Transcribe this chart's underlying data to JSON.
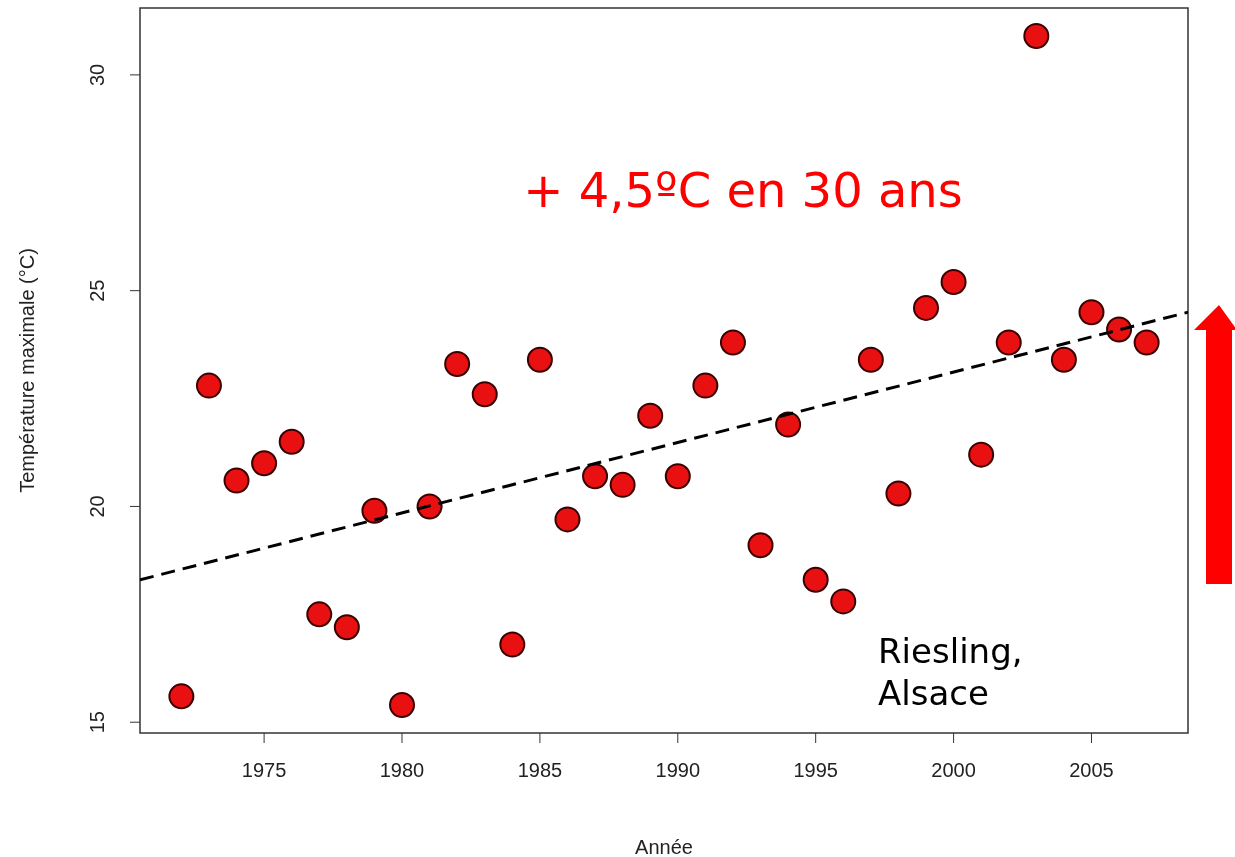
{
  "chart_data": {
    "type": "scatter",
    "xlabel": "Année",
    "ylabel": "Température maximale (°C)",
    "xlim": [
      1970.5,
      2008.5
    ],
    "ylim": [
      14.75,
      31.55
    ],
    "xticks": [
      1975,
      1980,
      1985,
      1990,
      1995,
      2000,
      2005
    ],
    "yticks": [
      15,
      20,
      25,
      30
    ],
    "grid": false,
    "marker": "circle",
    "annotations": [
      "+ 4,5ºC en 30 ans",
      "Riesling, Alsace"
    ],
    "series": [
      {
        "color": "#e81010",
        "x": [
          1972,
          1973,
          1974,
          1975,
          1976,
          1977,
          1978,
          1979,
          1980,
          1981,
          1982,
          1983,
          1984,
          1985,
          1986,
          1987,
          1988,
          1989,
          1990,
          1991,
          1992,
          1993,
          1994,
          1995,
          1996,
          1997,
          1998,
          1999,
          2000,
          2001,
          2002,
          2003,
          2004,
          2005,
          2006,
          2007
        ],
        "values": [
          15.6,
          22.8,
          20.6,
          21.0,
          21.5,
          17.5,
          17.2,
          19.9,
          15.4,
          20.0,
          23.3,
          22.6,
          16.8,
          23.4,
          19.7,
          20.7,
          20.5,
          22.1,
          20.7,
          22.8,
          23.8,
          19.1,
          21.9,
          18.3,
          17.8,
          23.4,
          20.3,
          24.6,
          25.2,
          21.2,
          23.8,
          30.9,
          23.4,
          24.5,
          24.1,
          23.8
        ]
      },
      {
        "type": "line",
        "color": "#000000",
        "line_style": "dashed",
        "marker": "none",
        "x": [
          1970.5,
          2008.5
        ],
        "values": [
          18.3,
          24.5
        ]
      }
    ]
  }
}
